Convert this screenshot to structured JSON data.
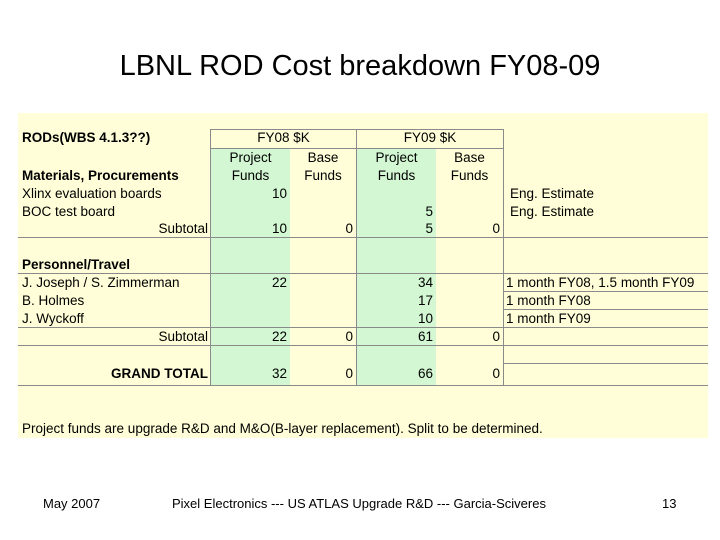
{
  "slide": {
    "title": "LBNL ROD Cost breakdown FY08-09",
    "footer_left": "May 2007",
    "footer_center": "Pixel Electronics --- US ATLAS Upgrade R&D --- Garcia-Sciveres",
    "footer_right": "13"
  },
  "table": {
    "section_title": "RODs(WBS 4.1.3??)",
    "fy08_header": "FY08 $K",
    "fy09_header": "FY09 $K",
    "project_funds_header": [
      "Project",
      "Funds"
    ],
    "base_funds_header": [
      "Base",
      "Funds"
    ],
    "materials": {
      "heading": "Materials, Procurements",
      "rows": [
        {
          "label": "Xlinx evaluation boards",
          "fy08_project": "10",
          "fy08_base": "",
          "fy09_project": "",
          "fy09_base": "",
          "note": "Eng. Estimate"
        },
        {
          "label": "BOC test board",
          "fy08_project": "",
          "fy08_base": "",
          "fy09_project": "5",
          "fy09_base": "",
          "note": "Eng. Estimate"
        }
      ],
      "subtotal": {
        "label": "Subtotal",
        "fy08_project": "10",
        "fy08_base": "0",
        "fy09_project": "5",
        "fy09_base": "0"
      }
    },
    "personnel": {
      "heading": "Personnel/Travel",
      "rows": [
        {
          "label": "J. Joseph / S. Zimmerman",
          "fy08_project": "22",
          "fy08_base": "",
          "fy09_project": "34",
          "fy09_base": "",
          "note": "1 month FY08, 1.5 month FY09"
        },
        {
          "label": "B. Holmes",
          "fy08_project": "",
          "fy08_base": "",
          "fy09_project": "17",
          "fy09_base": "",
          "note": "1 month FY08"
        },
        {
          "label": "J. Wyckoff",
          "fy08_project": "",
          "fy08_base": "",
          "fy09_project": "10",
          "fy09_base": "",
          "note": "1 month FY09"
        }
      ],
      "subtotal": {
        "label": "Subtotal",
        "fy08_project": "22",
        "fy08_base": "0",
        "fy09_project": "61",
        "fy09_base": "0"
      }
    },
    "grand_total": {
      "label": "GRAND TOTAL",
      "fy08_project": "32",
      "fy08_base": "0",
      "fy09_project": "66",
      "fy09_base": "0"
    },
    "footnote": "Project funds are upgrade R&D and M&O(B-layer replacement). Split to be determined."
  }
}
